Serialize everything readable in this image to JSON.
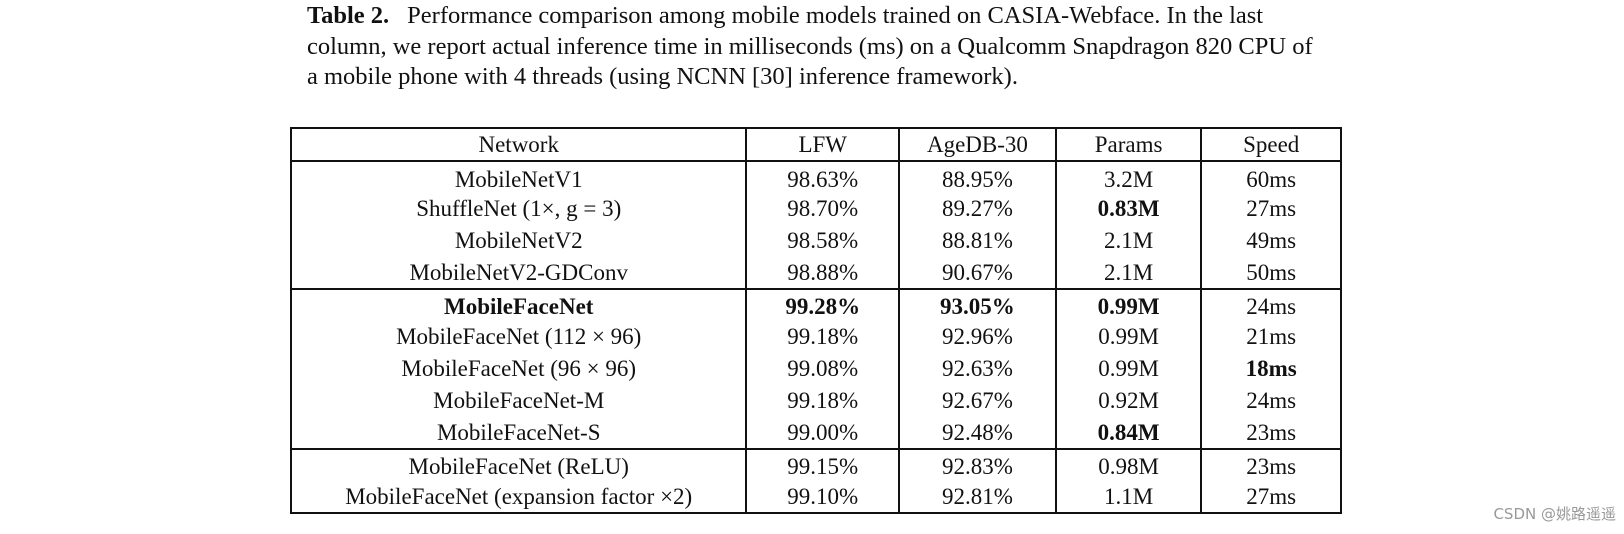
{
  "caption": {
    "label": "Table 2.",
    "text": "Performance comparison among mobile models trained on CASIA-Webface. In the last column, we report actual inference time in milliseconds (ms) on a Qualcomm Snapdragon 820 CPU of a mobile phone with 4 threads (using NCNN [30] inference framework)."
  },
  "table": {
    "headers": [
      "Network",
      "LFW",
      "AgeDB-30",
      "Params",
      "Speed"
    ],
    "groups": [
      [
        {
          "cells": [
            "MobileNetV1",
            "98.63%",
            "88.95%",
            "3.2M",
            "60ms"
          ],
          "bold": [
            false,
            false,
            false,
            false,
            false
          ]
        },
        {
          "cells": [
            "ShuffleNet (1×, g = 3)",
            "98.70%",
            "89.27%",
            "0.83M",
            "27ms"
          ],
          "bold": [
            false,
            false,
            false,
            true,
            false
          ]
        },
        {
          "cells": [
            "MobileNetV2",
            "98.58%",
            "88.81%",
            "2.1M",
            "49ms"
          ],
          "bold": [
            false,
            false,
            false,
            false,
            false
          ]
        },
        {
          "cells": [
            "MobileNetV2-GDConv",
            "98.88%",
            "90.67%",
            "2.1M",
            "50ms"
          ],
          "bold": [
            false,
            false,
            false,
            false,
            false
          ]
        }
      ],
      [
        {
          "cells": [
            "MobileFaceNet",
            "99.28%",
            "93.05%",
            "0.99M",
            "24ms"
          ],
          "bold": [
            true,
            true,
            true,
            true,
            false
          ]
        },
        {
          "cells": [
            "MobileFaceNet (112 × 96)",
            "99.18%",
            "92.96%",
            "0.99M",
            "21ms"
          ],
          "bold": [
            false,
            false,
            false,
            false,
            false
          ]
        },
        {
          "cells": [
            "MobileFaceNet (96 × 96)",
            "99.08%",
            "92.63%",
            "0.99M",
            "18ms"
          ],
          "bold": [
            false,
            false,
            false,
            false,
            true
          ]
        },
        {
          "cells": [
            "MobileFaceNet-M",
            "99.18%",
            "92.67%",
            "0.92M",
            "24ms"
          ],
          "bold": [
            false,
            false,
            false,
            false,
            false
          ]
        },
        {
          "cells": [
            "MobileFaceNet-S",
            "99.00%",
            "92.48%",
            "0.84M",
            "23ms"
          ],
          "bold": [
            false,
            false,
            false,
            true,
            false
          ]
        }
      ],
      [
        {
          "cells": [
            "MobileFaceNet (ReLU)",
            "99.15%",
            "92.83%",
            "0.98M",
            "23ms"
          ],
          "bold": [
            false,
            false,
            false,
            false,
            false
          ]
        },
        {
          "cells": [
            "MobileFaceNet (expansion factor ×2)",
            "99.10%",
            "92.81%",
            "1.1M",
            "27ms"
          ],
          "bold": [
            false,
            false,
            false,
            false,
            false
          ]
        }
      ]
    ]
  },
  "watermark": "CSDN @姚路遥遥"
}
